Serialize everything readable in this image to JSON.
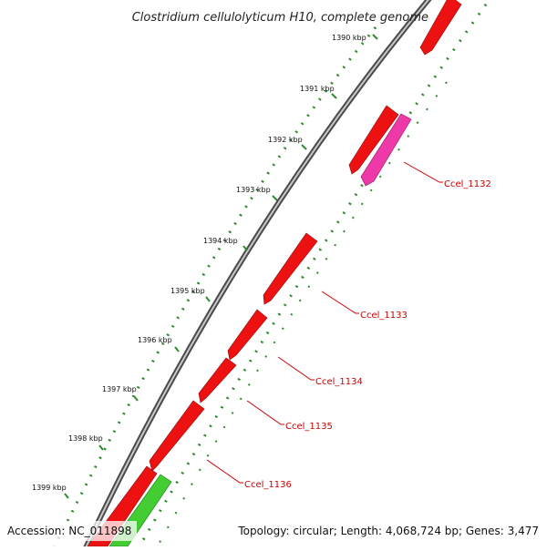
{
  "title": "Clostridium cellulolyticum H10, complete genome",
  "ticks": [
    "1390 kbp",
    "1391 kbp",
    "1392 kbp",
    "1393 kbp",
    "1394 kbp",
    "1395 kbp",
    "1396 kbp",
    "1397 kbp",
    "1398 kbp",
    "1399 kbp"
  ],
  "gene_labels": [
    "Ccel_1132",
    "Ccel_1133",
    "Ccel_1134",
    "Ccel_1135",
    "Ccel_1136"
  ],
  "footer": {
    "accession": "Accession: NC_011898",
    "stats": "Topology: circular; Length: 4,068,724 bp; Genes: 3,477"
  },
  "colors": {
    "backbone": "#8a8a8a",
    "gene_forward": "#ee1111",
    "gene_pink": "#ee3aa8",
    "gene_green": "#44cc33",
    "tick_track": "#2f8a2f",
    "label": "#cc0000"
  }
}
